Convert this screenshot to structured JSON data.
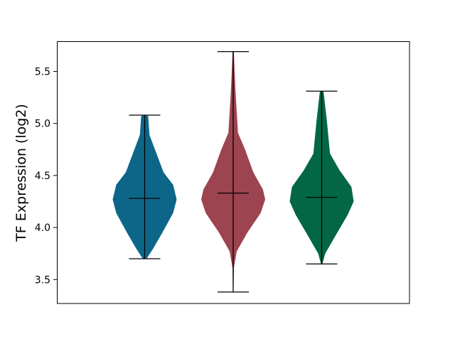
{
  "chart_data": {
    "type": "violin",
    "title": "",
    "xlabel": "",
    "ylabel": "TF Expression (log2)",
    "ylim": [
      3.27,
      5.79
    ],
    "yticks": [
      3.5,
      4.0,
      4.5,
      5.0,
      5.5
    ],
    "ytick_labels": [
      "3.5",
      "4.0",
      "4.5",
      "5.0",
      "5.5"
    ],
    "grid": false,
    "series": [
      {
        "color": "#0d6688",
        "min": 3.7,
        "max": 5.08,
        "median": 4.28,
        "density": [
          [
            5.08,
            0.03
          ],
          [
            5.07,
            0.11
          ],
          [
            4.89,
            0.15
          ],
          [
            4.71,
            0.37
          ],
          [
            4.53,
            0.59
          ],
          [
            4.41,
            0.89
          ],
          [
            4.27,
            1.0
          ],
          [
            4.14,
            0.89
          ],
          [
            3.955,
            0.56
          ],
          [
            3.795,
            0.26
          ],
          [
            3.705,
            0.07
          ],
          [
            3.7,
            0.02
          ]
        ]
      },
      {
        "color": "#9c4450",
        "min": 3.38,
        "max": 5.69,
        "median": 4.33,
        "density": [
          [
            5.685,
            0.02
          ],
          [
            5.32,
            0.07
          ],
          [
            4.91,
            0.15
          ],
          [
            4.75,
            0.37
          ],
          [
            4.53,
            0.63
          ],
          [
            4.365,
            0.93
          ],
          [
            4.27,
            1.0
          ],
          [
            4.14,
            0.86
          ],
          [
            3.955,
            0.45
          ],
          [
            3.77,
            0.11
          ],
          [
            3.61,
            0.02
          ],
          [
            3.384,
            0.01
          ]
        ]
      },
      {
        "color": "#036745",
        "min": 3.65,
        "max": 5.31,
        "median": 4.29,
        "density": [
          [
            5.31,
            0.03
          ],
          [
            5.3,
            0.06
          ],
          [
            5.03,
            0.16
          ],
          [
            4.71,
            0.26
          ],
          [
            4.55,
            0.56
          ],
          [
            4.39,
            0.93
          ],
          [
            4.25,
            1.0
          ],
          [
            4.12,
            0.81
          ],
          [
            3.91,
            0.41
          ],
          [
            3.75,
            0.11
          ],
          [
            3.66,
            0.03
          ],
          [
            3.65,
            0.01
          ]
        ]
      }
    ]
  }
}
